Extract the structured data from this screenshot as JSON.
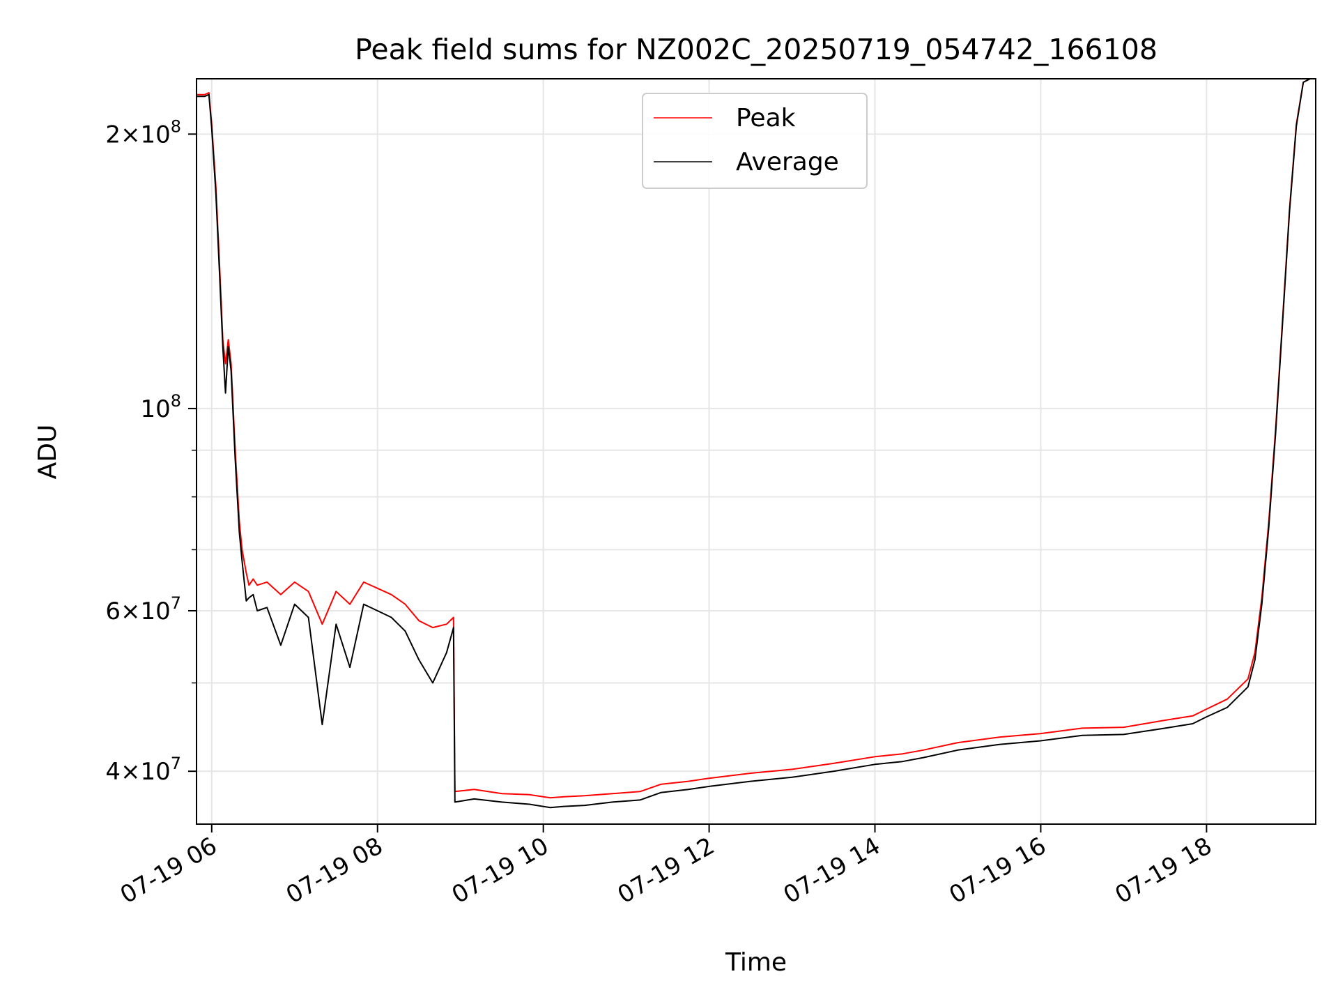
{
  "chart_data": {
    "type": "line",
    "title": "Peak field sums for NZ002C_20250719_054742_166108",
    "xlabel": "Time",
    "ylabel": "ADU",
    "y_scale": "log",
    "xlim": [
      "2025-07-19 05:49",
      "2025-07-19 19:19"
    ],
    "ylim": [
      35000000,
      230000000
    ],
    "grid": true,
    "legend_position": "upper center",
    "x_ticks": [
      {
        "t": "2025-07-19 06:00",
        "label": "07-19 06"
      },
      {
        "t": "2025-07-19 08:00",
        "label": "07-19 08"
      },
      {
        "t": "2025-07-19 10:00",
        "label": "07-19 10"
      },
      {
        "t": "2025-07-19 12:00",
        "label": "07-19 12"
      },
      {
        "t": "2025-07-19 14:00",
        "label": "07-19 14"
      },
      {
        "t": "2025-07-19 16:00",
        "label": "07-19 16"
      },
      {
        "t": "2025-07-19 18:00",
        "label": "07-19 18"
      }
    ],
    "y_ticks": [
      {
        "value": 200000000,
        "base": "2",
        "mult": "×",
        "pow_base": "10",
        "exp": "8"
      },
      {
        "value": 100000000,
        "base": "",
        "mult": "",
        "pow_base": "10",
        "exp": "8"
      },
      {
        "value": 60000000,
        "base": "6",
        "mult": "×",
        "pow_base": "10",
        "exp": "7"
      },
      {
        "value": 40000000,
        "base": "4",
        "mult": "×",
        "pow_base": "10",
        "exp": "7"
      }
    ],
    "y_minor_ticks": [
      50000000,
      70000000,
      80000000,
      90000000,
      300000000
    ],
    "series": [
      {
        "name": "Peak",
        "color": "#ff0000",
        "x": [
          "2025-07-19 05:49",
          "2025-07-19 05:55",
          "2025-07-19 05:58",
          "2025-07-19 06:00",
          "2025-07-19 06:03",
          "2025-07-19 06:06",
          "2025-07-19 06:08",
          "2025-07-19 06:10",
          "2025-07-19 06:12",
          "2025-07-19 06:14",
          "2025-07-19 06:17",
          "2025-07-19 06:20",
          "2025-07-19 06:22",
          "2025-07-19 06:25",
          "2025-07-19 06:27",
          "2025-07-19 06:30",
          "2025-07-19 06:33",
          "2025-07-19 06:40",
          "2025-07-19 06:50",
          "2025-07-19 07:00",
          "2025-07-19 07:10",
          "2025-07-19 07:20",
          "2025-07-19 07:30",
          "2025-07-19 07:40",
          "2025-07-19 07:50",
          "2025-07-19 08:00",
          "2025-07-19 08:10",
          "2025-07-19 08:20",
          "2025-07-19 08:30",
          "2025-07-19 08:40",
          "2025-07-19 08:50",
          "2025-07-19 08:55",
          "2025-07-19 08:56",
          "2025-07-19 09:10",
          "2025-07-19 09:30",
          "2025-07-19 09:50",
          "2025-07-19 10:05",
          "2025-07-19 10:15",
          "2025-07-19 10:30",
          "2025-07-19 10:50",
          "2025-07-19 11:10",
          "2025-07-19 11:25",
          "2025-07-19 11:45",
          "2025-07-19 12:00",
          "2025-07-19 12:30",
          "2025-07-19 13:00",
          "2025-07-19 13:30",
          "2025-07-19 14:00",
          "2025-07-19 14:20",
          "2025-07-19 14:35",
          "2025-07-19 15:00",
          "2025-07-19 15:30",
          "2025-07-19 16:00",
          "2025-07-19 16:30",
          "2025-07-19 17:00",
          "2025-07-19 17:30",
          "2025-07-19 17:50",
          "2025-07-19 18:00",
          "2025-07-19 18:15",
          "2025-07-19 18:30",
          "2025-07-19 18:35",
          "2025-07-19 18:40",
          "2025-07-19 18:45",
          "2025-07-19 18:50",
          "2025-07-19 18:55",
          "2025-07-19 19:00",
          "2025-07-19 19:05",
          "2025-07-19 19:10",
          "2025-07-19 19:15"
        ],
        "values": [
          221000000,
          221000000,
          222000000,
          205000000,
          175000000,
          140000000,
          119000000,
          112000000,
          119000000,
          112000000,
          90000000,
          75000000,
          70000000,
          66000000,
          64000000,
          65000000,
          64000000,
          64500000,
          62500000,
          64500000,
          63000000,
          58000000,
          63000000,
          61000000,
          64500000,
          63500000,
          62500000,
          61000000,
          58500000,
          57500000,
          58000000,
          59000000,
          38000000,
          38200000,
          37800000,
          37700000,
          37400000,
          37500000,
          37600000,
          37800000,
          38000000,
          38700000,
          39000000,
          39300000,
          39800000,
          40200000,
          40800000,
          41500000,
          41800000,
          42200000,
          43000000,
          43600000,
          44000000,
          44600000,
          44700000,
          45500000,
          46000000,
          46800000,
          48000000,
          50500000,
          54000000,
          62000000,
          75000000,
          95000000,
          125000000,
          165000000,
          205000000,
          228000000,
          230000000
        ]
      },
      {
        "name": "Average",
        "color": "#000000",
        "x": [
          "2025-07-19 05:49",
          "2025-07-19 05:55",
          "2025-07-19 05:58",
          "2025-07-19 06:00",
          "2025-07-19 06:03",
          "2025-07-19 06:06",
          "2025-07-19 06:08",
          "2025-07-19 06:10",
          "2025-07-19 06:12",
          "2025-07-19 06:14",
          "2025-07-19 06:17",
          "2025-07-19 06:20",
          "2025-07-19 06:22",
          "2025-07-19 06:25",
          "2025-07-19 06:27",
          "2025-07-19 06:30",
          "2025-07-19 06:33",
          "2025-07-19 06:40",
          "2025-07-19 06:50",
          "2025-07-19 07:00",
          "2025-07-19 07:10",
          "2025-07-19 07:20",
          "2025-07-19 07:30",
          "2025-07-19 07:40",
          "2025-07-19 07:50",
          "2025-07-19 08:00",
          "2025-07-19 08:10",
          "2025-07-19 08:20",
          "2025-07-19 08:30",
          "2025-07-19 08:40",
          "2025-07-19 08:50",
          "2025-07-19 08:55",
          "2025-07-19 08:56",
          "2025-07-19 09:10",
          "2025-07-19 09:30",
          "2025-07-19 09:50",
          "2025-07-19 10:05",
          "2025-07-19 10:15",
          "2025-07-19 10:30",
          "2025-07-19 10:50",
          "2025-07-19 11:10",
          "2025-07-19 11:25",
          "2025-07-19 11:45",
          "2025-07-19 12:00",
          "2025-07-19 12:30",
          "2025-07-19 13:00",
          "2025-07-19 13:30",
          "2025-07-19 14:00",
          "2025-07-19 14:20",
          "2025-07-19 14:35",
          "2025-07-19 15:00",
          "2025-07-19 15:30",
          "2025-07-19 16:00",
          "2025-07-19 16:30",
          "2025-07-19 17:00",
          "2025-07-19 17:30",
          "2025-07-19 17:50",
          "2025-07-19 18:00",
          "2025-07-19 18:15",
          "2025-07-19 18:30",
          "2025-07-19 18:35",
          "2025-07-19 18:40",
          "2025-07-19 18:45",
          "2025-07-19 18:50",
          "2025-07-19 18:55",
          "2025-07-19 19:00",
          "2025-07-19 19:05",
          "2025-07-19 19:10",
          "2025-07-19 19:15"
        ],
        "values": [
          220000000,
          220000000,
          221000000,
          203000000,
          172000000,
          137000000,
          117000000,
          104000000,
          117000000,
          110000000,
          88000000,
          73000000,
          68000000,
          61500000,
          62000000,
          62500000,
          60000000,
          60500000,
          55000000,
          61000000,
          59000000,
          45000000,
          58000000,
          52000000,
          61000000,
          60000000,
          59000000,
          57000000,
          53000000,
          50000000,
          54000000,
          57500000,
          37000000,
          37300000,
          37000000,
          36800000,
          36500000,
          36600000,
          36700000,
          37000000,
          37200000,
          37900000,
          38200000,
          38500000,
          39000000,
          39400000,
          40000000,
          40700000,
          41000000,
          41400000,
          42200000,
          42800000,
          43200000,
          43800000,
          43900000,
          44600000,
          45100000,
          45900000,
          47000000,
          49500000,
          53000000,
          61000000,
          74000000,
          94000000,
          124000000,
          164000000,
          204000000,
          228000000,
          230000000
        ]
      }
    ]
  }
}
